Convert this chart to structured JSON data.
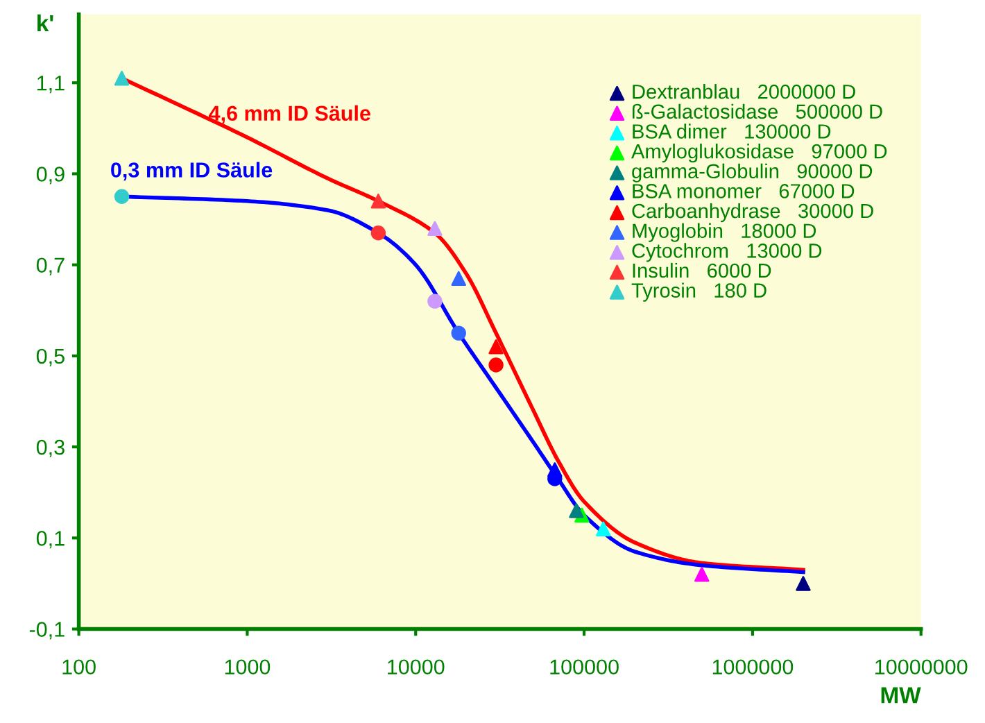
{
  "chart_data": {
    "type": "scatter",
    "xlabel": "MW",
    "ylabel": "k'",
    "log": "x",
    "grid": false,
    "legend": "top right",
    "xlim": [
      100,
      10000000
    ],
    "xticks": [
      100,
      1000,
      10000,
      100000,
      1000000,
      10000000
    ],
    "ylim": [
      -0.1,
      1.25
    ],
    "yticks": [
      {
        "value": -0.1,
        "label": "-0,1"
      },
      {
        "value": 0.1,
        "label": "0,1"
      },
      {
        "value": 0.3,
        "label": "0,3"
      },
      {
        "value": 0.5,
        "label": "0,5"
      },
      {
        "value": 0.7,
        "label": "0,7"
      },
      {
        "value": 0.9,
        "label": "0,9"
      },
      {
        "value": 1.1,
        "label": "1,1"
      }
    ],
    "series": [
      {
        "name": "4,6 mm ID Säule",
        "type": "line",
        "color": "#ff0000",
        "marker": "none",
        "x": [
          180,
          1000,
          3000,
          6000,
          13000,
          20000,
          30000,
          50000,
          70000,
          100000,
          200000,
          500000,
          2000000
        ],
        "values": [
          1.11,
          0.98,
          0.89,
          0.84,
          0.77,
          0.68,
          0.55,
          0.38,
          0.27,
          0.18,
          0.09,
          0.045,
          0.03
        ]
      },
      {
        "name": "0,3 mm ID Säule",
        "type": "line",
        "color": "#0000ff",
        "marker": "none",
        "x": [
          180,
          1000,
          3000,
          6000,
          10000,
          18000,
          30000,
          50000,
          70000,
          100000,
          200000,
          500000,
          2000000
        ],
        "values": [
          0.85,
          0.84,
          0.82,
          0.77,
          0.7,
          0.55,
          0.43,
          0.31,
          0.23,
          0.15,
          0.07,
          0.04,
          0.025
        ]
      },
      {
        "name": "Dextranblau   2000000 D",
        "color": "#000080",
        "marker": "triangle",
        "x": [
          2000000
        ],
        "values": [
          0.0
        ]
      },
      {
        "name": "ß-Galactosidase   500000 D",
        "color": "#ff00ff",
        "marker": "triangle",
        "x": [
          500000
        ],
        "values": [
          0.02
        ]
      },
      {
        "name": "BSA dimer   130000 D",
        "color": "#00ffff",
        "marker": "triangle",
        "x": [
          130000
        ],
        "values": [
          0.12
        ]
      },
      {
        "name": "Amyloglukosidase   97000 D",
        "color": "#00ff00",
        "marker": "triangle",
        "x": [
          97000
        ],
        "values": [
          0.15
        ]
      },
      {
        "name": "gamma-Globulin   90000 D",
        "color": "#008080",
        "marker": "triangle",
        "x": [
          90000
        ],
        "values": [
          0.16
        ]
      },
      {
        "name": "BSA monomer   67000 D",
        "color": "#0000ff",
        "marker": "triangle",
        "x": [
          67000
        ],
        "values": [
          0.25
        ]
      },
      {
        "name": "Carboanhydrase   30000 D",
        "color": "#ff0000",
        "marker": "triangle",
        "x": [
          30000
        ],
        "values": [
          0.52
        ]
      },
      {
        "name": "Myoglobin   18000 D",
        "color": "#3366ff",
        "marker": "triangle",
        "x": [
          18000
        ],
        "values": [
          0.67
        ]
      },
      {
        "name": "Cytochrom   13000 D",
        "color": "#cc99ff",
        "marker": "triangle",
        "x": [
          13000
        ],
        "values": [
          0.78
        ]
      },
      {
        "name": "Insulin   6000 D",
        "color": "#ff3333",
        "marker": "triangle",
        "x": [
          6000
        ],
        "values": [
          0.84
        ]
      },
      {
        "name": "Tyrosin   180 D",
        "color": "#33cccc",
        "marker": "triangle",
        "x": [
          180
        ],
        "values": [
          1.11
        ]
      },
      {
        "color": "#0000ff",
        "marker": "circle",
        "x": [
          67000
        ],
        "values": [
          0.23
        ]
      },
      {
        "color": "#ff0000",
        "marker": "circle",
        "x": [
          30000
        ],
        "values": [
          0.48
        ]
      },
      {
        "color": "#3366ff",
        "marker": "circle",
        "x": [
          18000
        ],
        "values": [
          0.55
        ]
      },
      {
        "color": "#cc99ff",
        "marker": "circle",
        "x": [
          13000
        ],
        "values": [
          0.62
        ]
      },
      {
        "color": "#ff3333",
        "marker": "circle",
        "x": [
          6000
        ],
        "values": [
          0.77
        ]
      },
      {
        "color": "#33cccc",
        "marker": "circle",
        "x": [
          180
        ],
        "values": [
          0.85
        ]
      }
    ]
  }
}
